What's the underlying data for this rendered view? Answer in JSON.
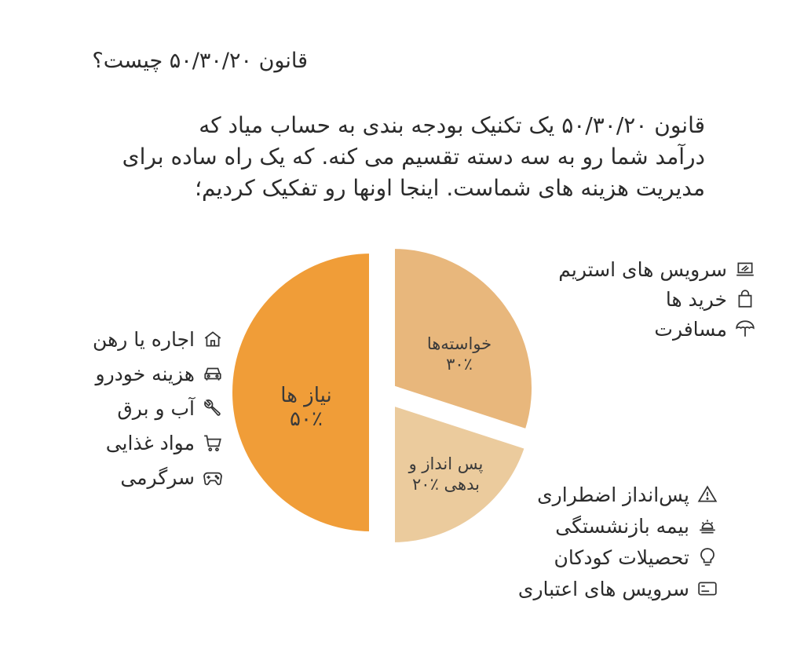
{
  "title": "قانون ۵۰/۳۰/۲۰ چیست؟",
  "intro_lines": [
    "قانون ۵۰/۳۰/۲۰ یک تکنیک بودجه بندی به حساب میاد که",
    "درآمد شما رو به سه دسته تقسیم می کنه. که یک راه ساده برای",
    "مدیریت هزینه های شماست. اینجا اونها رو تفکیک کردیم؛"
  ],
  "chart_data": {
    "type": "pie",
    "slices": [
      {
        "name": "نیاز ها",
        "value": 50,
        "value_label": "۵۰٪",
        "color": "#F09D38",
        "label_lines": [
          "نیاز ها",
          "۵۰٪"
        ]
      },
      {
        "name": "خواسته‌ها",
        "value": 30,
        "value_label": "۳۰٪",
        "color": "#E8B77C",
        "label_lines": [
          "خواسته‌ها",
          "۳۰٪"
        ]
      },
      {
        "name": "پس انداز و بدهی",
        "value": 20,
        "value_label": "٪۲۰",
        "color": "#EBCB9D",
        "label_lines": [
          "پس انداز و",
          "بدهی ٪۲۰"
        ]
      }
    ]
  },
  "needs_items": [
    {
      "label": "اجاره یا رهن",
      "icon": "house-icon"
    },
    {
      "label": "هزینه خودرو",
      "icon": "car-icon"
    },
    {
      "label": "آب و برق",
      "icon": "wrench-icon"
    },
    {
      "label": "مواد غذایی",
      "icon": "cart-icon"
    },
    {
      "label": "سرگرمی",
      "icon": "gamepad-icon"
    }
  ],
  "wants_items": [
    {
      "label": "سرویس های استریم",
      "icon": "laptop-icon"
    },
    {
      "label": "خرید ها",
      "icon": "shopping-bag-icon"
    },
    {
      "label": "مسافرت",
      "icon": "beach-umbrella-icon"
    }
  ],
  "savings_items": [
    {
      "label": "پس‌انداز اضطراری",
      "icon": "warning-icon"
    },
    {
      "label": "بیمه بازنشستگی",
      "icon": "sunset-icon"
    },
    {
      "label": "تحصیلات کودکان",
      "icon": "lightbulb-icon"
    },
    {
      "label": "سرویس های اعتباری",
      "icon": "credit-card-icon"
    }
  ]
}
